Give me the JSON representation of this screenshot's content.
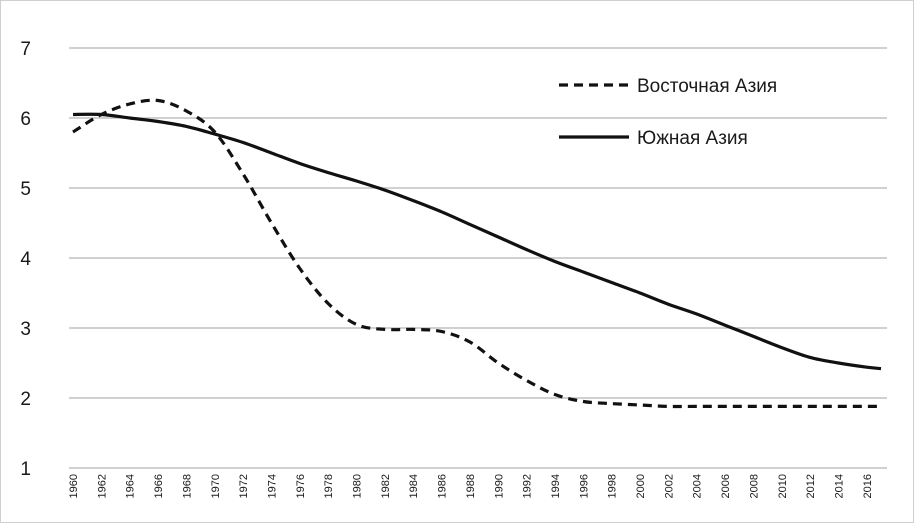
{
  "chart_data": {
    "type": "line",
    "title": "",
    "xlabel": "",
    "ylabel": "",
    "ylim": [
      1,
      7
    ],
    "xlim": [
      1960,
      2017
    ],
    "yticks": [
      1,
      2,
      3,
      4,
      5,
      6,
      7
    ],
    "xticks": [
      "1960",
      "1962",
      "1964",
      "1966",
      "1968",
      "1970",
      "1972",
      "1974",
      "1976",
      "1978",
      "1980",
      "1982",
      "1984",
      "1986",
      "1988",
      "1990",
      "1992",
      "1994",
      "1996",
      "1998",
      "2000",
      "2002",
      "2004",
      "2006",
      "2008",
      "2010",
      "2012",
      "2014",
      "2016"
    ],
    "grid": true,
    "legend_position": "top-right",
    "series": [
      {
        "name": "Восточная Азия",
        "style": "dashed",
        "color": "#111111",
        "x": [
          1960,
          1962,
          1964,
          1966,
          1968,
          1970,
          1972,
          1974,
          1976,
          1978,
          1980,
          1982,
          1984,
          1986,
          1988,
          1990,
          1992,
          1994,
          1996,
          1998,
          2000,
          2002,
          2004,
          2006,
          2008,
          2010,
          2012,
          2014,
          2016,
          2017
        ],
        "y": [
          5.8,
          6.05,
          6.2,
          6.25,
          6.1,
          5.8,
          5.2,
          4.5,
          3.85,
          3.35,
          3.05,
          2.98,
          2.98,
          2.95,
          2.8,
          2.5,
          2.25,
          2.05,
          1.95,
          1.92,
          1.9,
          1.88,
          1.88,
          1.88,
          1.88,
          1.88,
          1.88,
          1.88,
          1.88,
          1.88
        ]
      },
      {
        "name": "Южная Азия",
        "style": "solid",
        "color": "#111111",
        "x": [
          1960,
          1962,
          1964,
          1966,
          1968,
          1970,
          1972,
          1974,
          1976,
          1978,
          1980,
          1982,
          1984,
          1986,
          1988,
          1990,
          1992,
          1994,
          1996,
          1998,
          2000,
          2002,
          2004,
          2006,
          2008,
          2010,
          2012,
          2014,
          2016,
          2017
        ],
        "y": [
          6.05,
          6.05,
          6.0,
          5.95,
          5.88,
          5.77,
          5.65,
          5.5,
          5.35,
          5.22,
          5.1,
          4.97,
          4.82,
          4.66,
          4.48,
          4.3,
          4.12,
          3.95,
          3.8,
          3.65,
          3.5,
          3.34,
          3.2,
          3.04,
          2.88,
          2.72,
          2.58,
          2.5,
          2.44,
          2.42
        ]
      }
    ]
  }
}
